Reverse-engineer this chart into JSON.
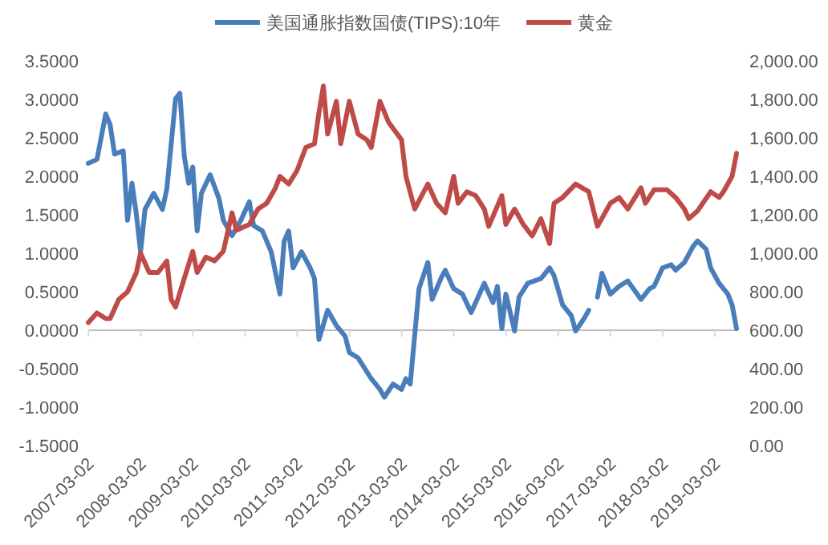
{
  "chart_data": {
    "type": "line",
    "legend": "top",
    "xlim": [
      "2007-03",
      "2019-08"
    ],
    "xticks": [
      "2007-03-02",
      "2008-03-02",
      "2009-03-02",
      "2010-03-02",
      "2011-03-02",
      "2012-03-02",
      "2013-03-02",
      "2014-03-02",
      "2015-03-02",
      "2016-03-02",
      "2017-03-02",
      "2018-03-02",
      "2019-03-02"
    ],
    "ylim": [
      -1.5,
      3.5
    ],
    "yticks": [
      {
        "value": -1.5,
        "label": "-1.5000"
      },
      {
        "value": -1,
        "label": "-1.0000"
      },
      {
        "value": -0.5,
        "label": "-0.5000"
      },
      {
        "value": 0,
        "label": "0.0000"
      },
      {
        "value": 0.5,
        "label": "0.5000"
      },
      {
        "value": 1,
        "label": "1.0000"
      },
      {
        "value": 1.5,
        "label": "1.5000"
      },
      {
        "value": 2,
        "label": "2.0000"
      },
      {
        "value": 2.5,
        "label": "2.5000"
      },
      {
        "value": 3,
        "label": "3.0000"
      },
      {
        "value": 3.5,
        "label": "3.5000"
      }
    ],
    "y2lim": [
      0,
      2000
    ],
    "y2ticks": [
      {
        "value": 0,
        "label": "0.00"
      },
      {
        "value": 200,
        "label": "200.00"
      },
      {
        "value": 400,
        "label": "400.00"
      },
      {
        "value": 600,
        "label": "600.00"
      },
      {
        "value": 800,
        "label": "800.00"
      },
      {
        "value": 1000,
        "label": "1,000.00"
      },
      {
        "value": 1200,
        "label": "1,200.00"
      },
      {
        "value": 1400,
        "label": "1,400.00"
      },
      {
        "value": 1600,
        "label": "1,600.00"
      },
      {
        "value": 1800,
        "label": "1,800.00"
      },
      {
        "value": 2000,
        "label": "2,000.00"
      }
    ],
    "series": [
      {
        "name": "美国通胀指数国债(TIPS):10年",
        "color": "#4a7ebb",
        "x": [
          "2007-03",
          "2007-05",
          "2007-07",
          "2007-08",
          "2007-09",
          "2007-11",
          "2007-12",
          "2008-01",
          "2008-02",
          "2008-03",
          "2008-04",
          "2008-06",
          "2008-08",
          "2008-09",
          "2008-11",
          "2008-12",
          "2009-01",
          "2009-02",
          "2009-03",
          "2009-04",
          "2009-05",
          "2009-07",
          "2009-09",
          "2009-10",
          "2009-12",
          "2010-02",
          "2010-04",
          "2010-05",
          "2010-07",
          "2010-09",
          "2010-11",
          "2010-12",
          "2011-01",
          "2011-02",
          "2011-04",
          "2011-06",
          "2011-07",
          "2011-08",
          "2011-10",
          "2011-12",
          "2012-02",
          "2012-03",
          "2012-05",
          "2012-08",
          "2012-10",
          "2012-11",
          "2013-01",
          "2013-03",
          "2013-04",
          "2013-05",
          "2013-07",
          "2013-09",
          "2013-10",
          "2013-12",
          "2014-01",
          "2014-03",
          "2014-05",
          "2014-07",
          "2014-10",
          "2014-12",
          "2015-01",
          "2015-02",
          "2015-03",
          "2015-05",
          "2015-06",
          "2015-08",
          "2015-11",
          "2016-01",
          "2016-02",
          "2016-04",
          "2016-06",
          "2016-07",
          "2016-09",
          "2016-10",
          "2016-11",
          "2016-12",
          "2017-01",
          "2017-03",
          "2017-05",
          "2017-07",
          "2017-10",
          "2017-12",
          "2018-01",
          "2018-03",
          "2018-05",
          "2018-06",
          "2018-08",
          "2018-10",
          "2018-11",
          "2019-01",
          "2019-02",
          "2019-04",
          "2019-06",
          "2019-07",
          "2019-08"
        ],
        "values": [
          2.17,
          2.22,
          2.81,
          2.67,
          2.29,
          2.33,
          1.43,
          1.91,
          1.5,
          1.02,
          1.57,
          1.78,
          1.57,
          1.84,
          3.01,
          3.08,
          2.26,
          1.91,
          2.12,
          1.29,
          1.78,
          2.02,
          1.71,
          1.43,
          1.23,
          1.43,
          1.67,
          1.36,
          1.29,
          1.02,
          0.47,
          1.16,
          1.29,
          0.81,
          1.02,
          0.81,
          0.67,
          -0.12,
          0.26,
          0.06,
          -0.08,
          -0.29,
          -0.36,
          -0.63,
          -0.77,
          -0.87,
          -0.7,
          -0.77,
          -0.63,
          -0.7,
          0.54,
          0.88,
          0.4,
          0.67,
          0.78,
          0.54,
          0.47,
          0.23,
          0.61,
          0.36,
          0.57,
          0.02,
          0.47,
          -0.01,
          0.43,
          0.61,
          0.67,
          0.81,
          0.71,
          0.33,
          0.19,
          -0.01,
          0.16,
          0.26,
          null,
          0.43,
          0.74,
          0.47,
          0.57,
          0.64,
          0.4,
          0.54,
          0.57,
          0.81,
          0.85,
          0.78,
          0.88,
          1.09,
          1.16,
          1.05,
          0.81,
          0.61,
          0.47,
          0.33,
          0.02
        ]
      },
      {
        "name": "黄金",
        "color": "#be4b48",
        "axis": "y2",
        "x": [
          "2007-03",
          "2007-05",
          "2007-07",
          "2007-08",
          "2007-10",
          "2007-12",
          "2008-02",
          "2008-03",
          "2008-05",
          "2008-07",
          "2008-09",
          "2008-10",
          "2008-11",
          "2009-01",
          "2009-03",
          "2009-04",
          "2009-06",
          "2009-08",
          "2009-10",
          "2009-12",
          "2010-01",
          "2010-04",
          "2010-06",
          "2010-08",
          "2010-10",
          "2010-11",
          "2011-01",
          "2011-03",
          "2011-05",
          "2011-07",
          "2011-08",
          "2011-09",
          "2011-10",
          "2011-12",
          "2012-01",
          "2012-03",
          "2012-05",
          "2012-07",
          "2012-08",
          "2012-10",
          "2012-12",
          "2013-03",
          "2013-04",
          "2013-06",
          "2013-09",
          "2013-11",
          "2014-01",
          "2014-03",
          "2014-04",
          "2014-06",
          "2014-08",
          "2014-10",
          "2014-11",
          "2015-02",
          "2015-03",
          "2015-05",
          "2015-07",
          "2015-09",
          "2015-11",
          "2016-01",
          "2016-02",
          "2016-04",
          "2016-07",
          "2016-10",
          "2016-12",
          "2017-03",
          "2017-05",
          "2017-07",
          "2017-10",
          "2017-11",
          "2018-01",
          "2018-04",
          "2018-06",
          "2018-08",
          "2018-09",
          "2018-11",
          "2019-02",
          "2019-04",
          "2019-05",
          "2019-07",
          "2019-08"
        ],
        "values": [
          640,
          690,
          660,
          660,
          760,
          800,
          900,
          1000,
          900,
          900,
          960,
          760,
          720,
          870,
          1010,
          900,
          980,
          960,
          1010,
          1210,
          1120,
          1150,
          1230,
          1260,
          1340,
          1400,
          1360,
          1430,
          1550,
          1570,
          1730,
          1870,
          1620,
          1790,
          1570,
          1790,
          1620,
          1590,
          1550,
          1790,
          1680,
          1590,
          1400,
          1230,
          1360,
          1260,
          1210,
          1400,
          1260,
          1320,
          1300,
          1230,
          1140,
          1300,
          1150,
          1230,
          1150,
          1090,
          1180,
          1050,
          1260,
          1290,
          1360,
          1320,
          1140,
          1260,
          1290,
          1230,
          1340,
          1260,
          1330,
          1330,
          1290,
          1230,
          1180,
          1220,
          1320,
          1290,
          1320,
          1400,
          1520
        ]
      }
    ]
  }
}
